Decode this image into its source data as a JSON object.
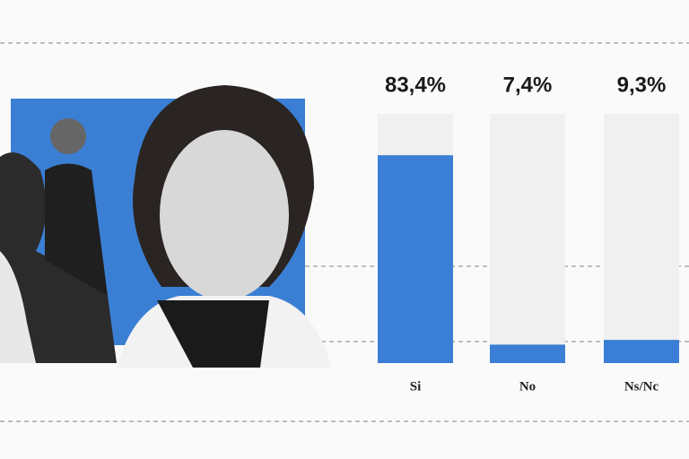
{
  "chart_data": {
    "type": "bar",
    "categories": [
      "Si",
      "No",
      "Ns/Nc"
    ],
    "values": [
      83.4,
      7.4,
      9.3
    ],
    "value_labels": [
      "83,4%",
      "7,4%",
      "9,3%"
    ],
    "color": "#3a7fd5",
    "track_color": "#f0f0f0",
    "ylim": [
      0,
      100
    ]
  }
}
